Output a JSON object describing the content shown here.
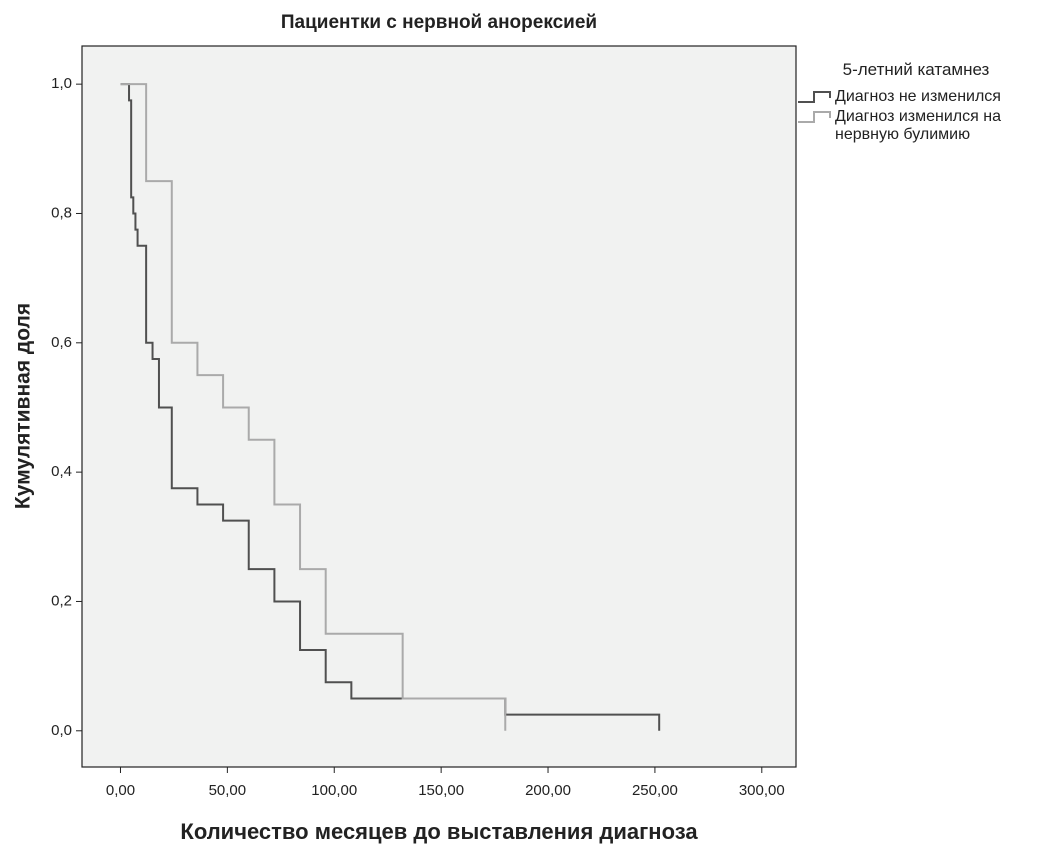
{
  "chart_data": {
    "type": "step",
    "title": "Пациентки с нервной анорексией",
    "xlabel": "Количество месяцев до выставления диагноза",
    "ylabel": "Кумулятивная доля",
    "legend_title": "5-летний катамнез",
    "xlim": [
      -18,
      316
    ],
    "ylim": [
      -0.056,
      1.059
    ],
    "xticks": [
      {
        "value": 0,
        "label": "0,00"
      },
      {
        "value": 50,
        "label": "50,00"
      },
      {
        "value": 100,
        "label": "100,00"
      },
      {
        "value": 150,
        "label": "150,00"
      },
      {
        "value": 200,
        "label": "200,00"
      },
      {
        "value": 250,
        "label": "250,00"
      },
      {
        "value": 300,
        "label": "300,00"
      }
    ],
    "yticks": [
      {
        "value": 0,
        "label": "0,0"
      },
      {
        "value": 0.2,
        "label": "0,2"
      },
      {
        "value": 0.4,
        "label": "0,4"
      },
      {
        "value": 0.6,
        "label": "0,6"
      },
      {
        "value": 0.8,
        "label": "0,8"
      },
      {
        "value": 1,
        "label": "1,0"
      }
    ],
    "series": [
      {
        "name": "Диагноз не изменился",
        "color": "#505050",
        "x": [
          0,
          4,
          5,
          6,
          7,
          8,
          12,
          15,
          18,
          24,
          36,
          48,
          60,
          72,
          84,
          96,
          108,
          180,
          252
        ],
        "values": [
          1,
          0.975,
          0.825,
          0.8,
          0.775,
          0.75,
          0.6,
          0.575,
          0.5,
          0.375,
          0.35,
          0.325,
          0.25,
          0.2,
          0.125,
          0.075,
          0.05,
          0.025,
          0
        ]
      },
      {
        "name": "Диагноз изменился на нервную булимию",
        "color": "#aaaaaa",
        "x": [
          0,
          12,
          24,
          36,
          48,
          60,
          72,
          84,
          96,
          132,
          180
        ],
        "values": [
          1,
          0.85,
          0.6,
          0.55,
          0.5,
          0.45,
          0.35,
          0.25,
          0.15,
          0.05,
          0
        ]
      }
    ]
  }
}
